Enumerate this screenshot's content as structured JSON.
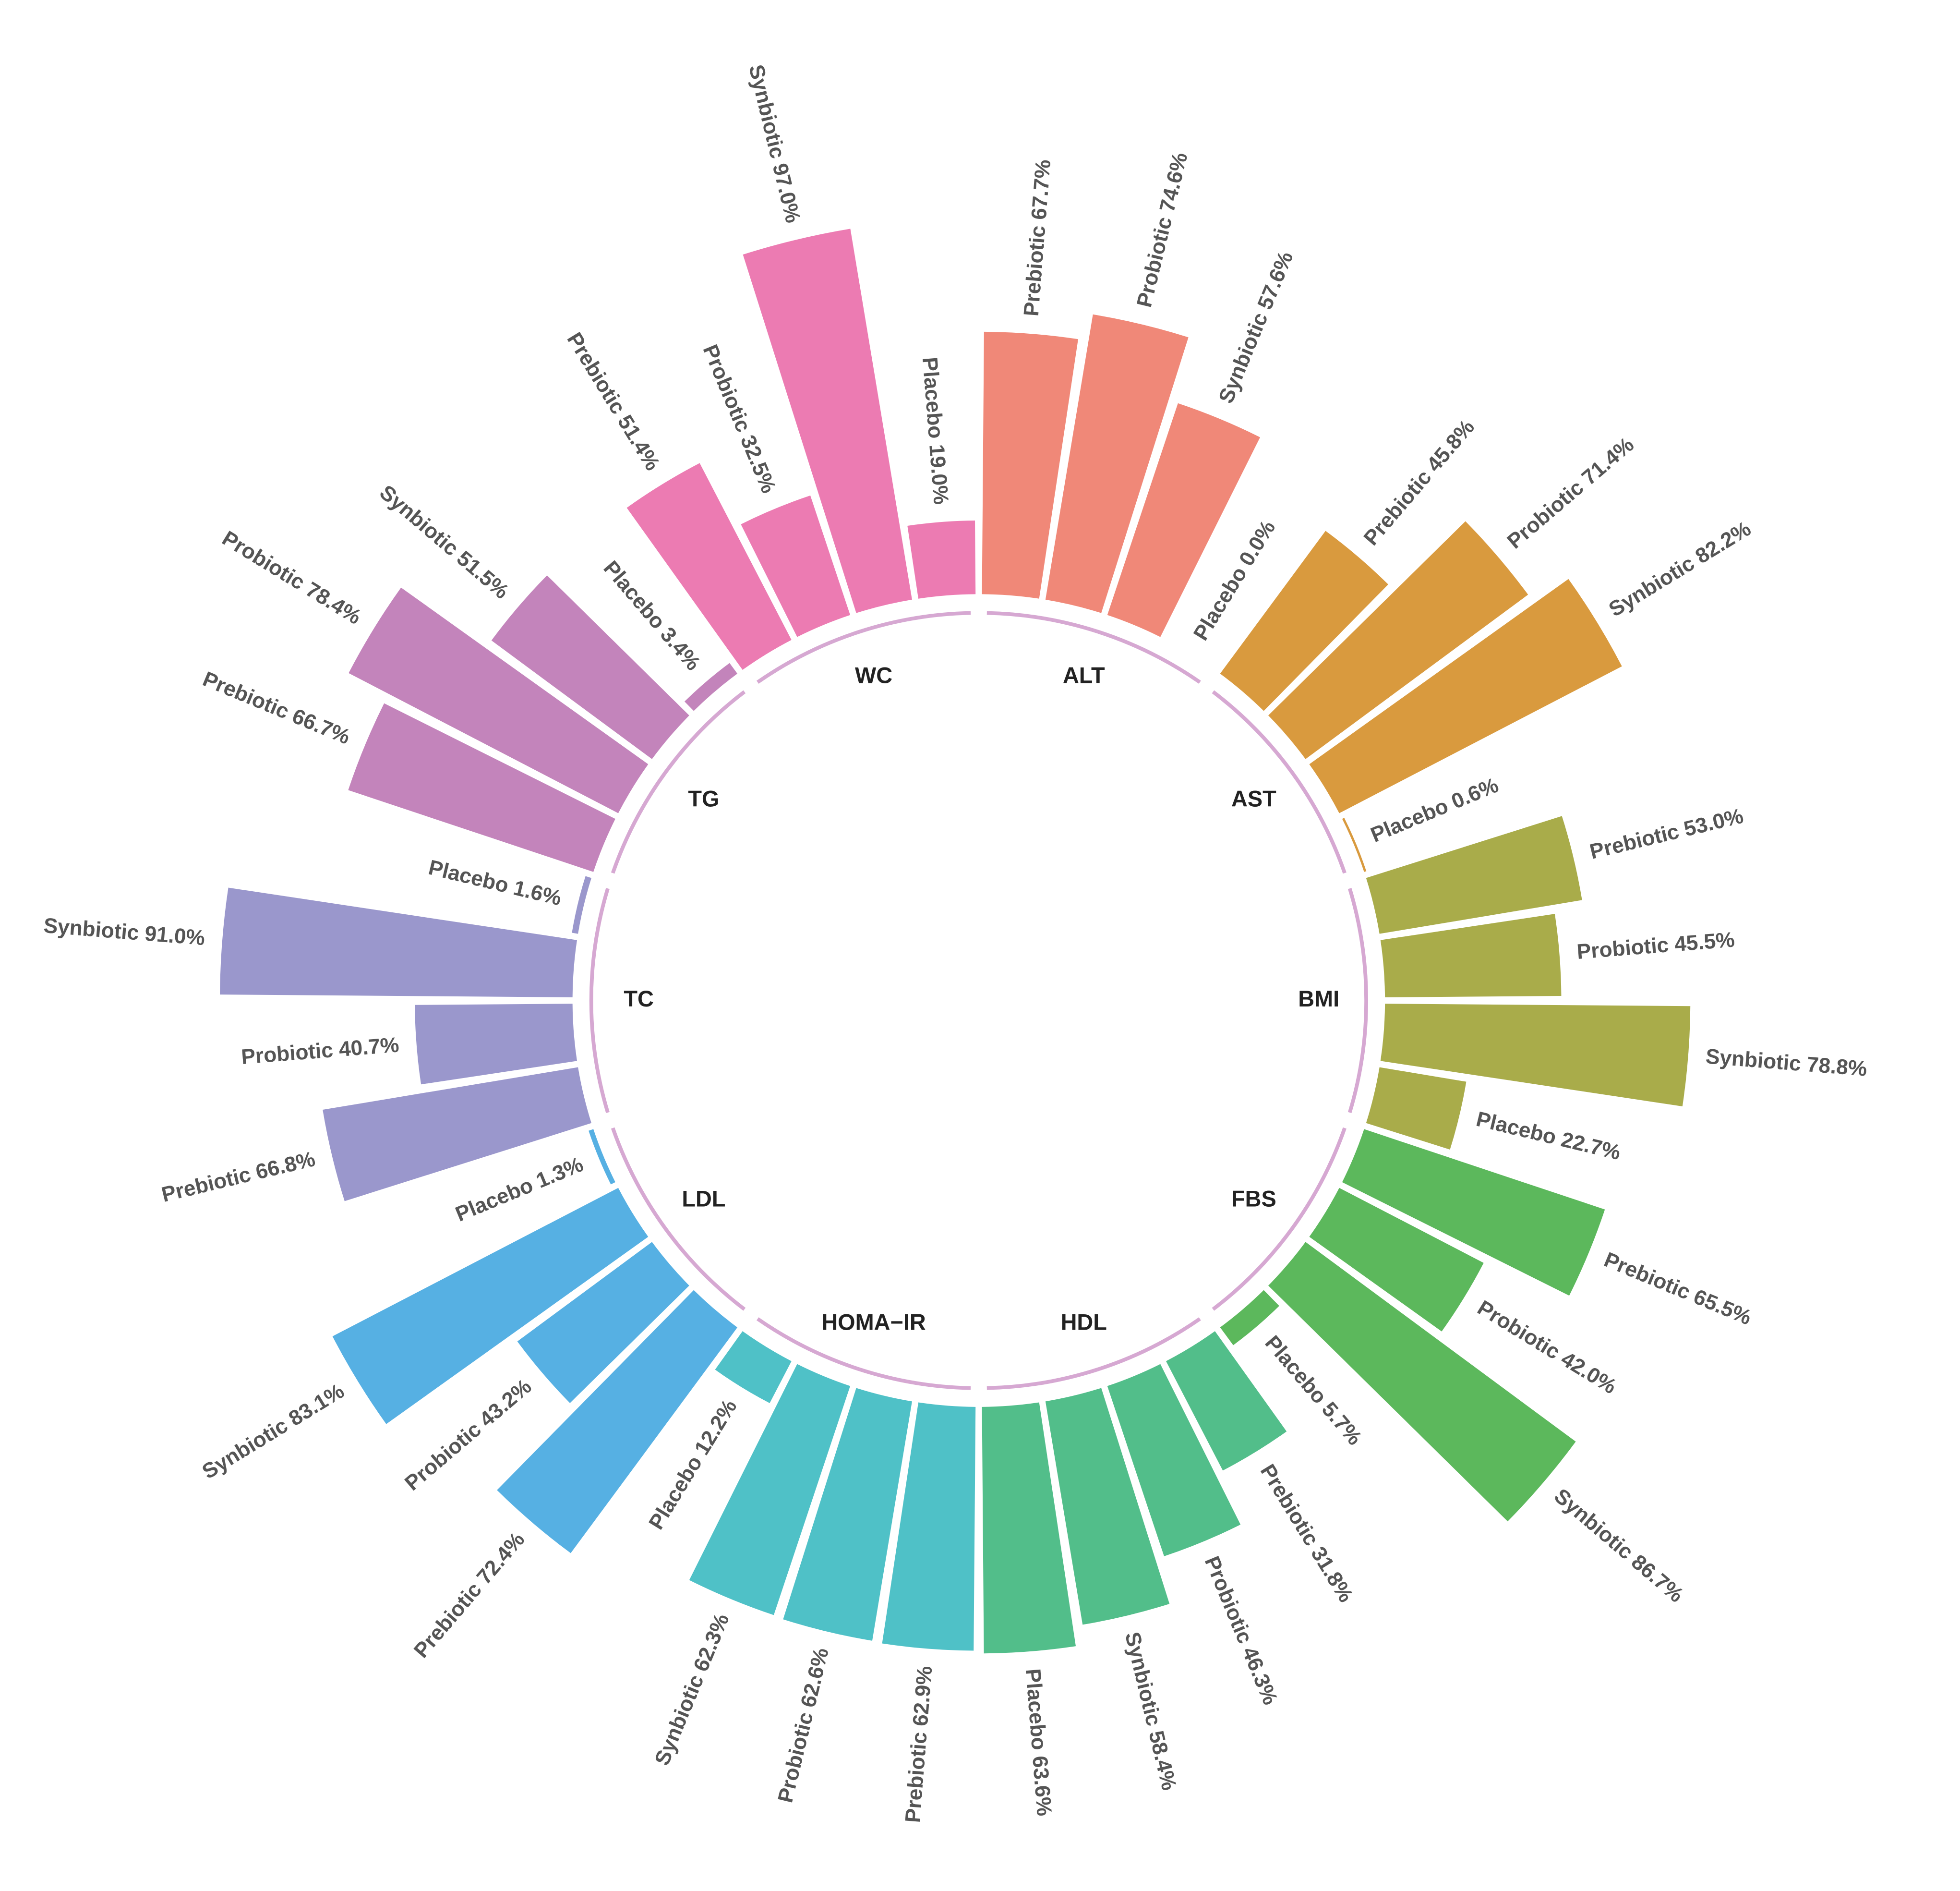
{
  "chart_data": {
    "type": "circular_bar",
    "categories": [
      "ALT",
      "AST",
      "BMI",
      "FBS",
      "HDL",
      "HOMA−IR",
      "LDL",
      "TC",
      "TG",
      "WC"
    ],
    "colors": [
      "#f08878",
      "#d99a3e",
      "#a9ac4a",
      "#5cb85c",
      "#52be8a",
      "#4fc1c7",
      "#56b0e3",
      "#9a97cc",
      "#c384bb",
      "#ec7bb2"
    ],
    "ylim": [
      0,
      100
    ],
    "series": [
      {
        "values": [
          67.7,
          45.8,
          53.0,
          65.5,
          31.8,
          62.9,
          72.4,
          66.8,
          66.7,
          51.4
        ],
        "value_labels": [
          "Prebiotic 67.7%",
          "Prebiotic 45.8%",
          "Prebiotic 53.0%",
          "Prebiotic 65.5%",
          "Prebiotic 31.8%",
          "Prebiotic 62.9%",
          "Prebiotic 72.4%",
          "Prebiotic 66.8%",
          "Prebiotic 66.7%",
          "Prebiotic 51.4%"
        ]
      },
      {
        "values": [
          74.6,
          71.4,
          45.5,
          42.0,
          46.3,
          62.6,
          43.2,
          40.7,
          78.4,
          32.5
        ],
        "value_labels": [
          "Probiotic 74.6%",
          "Probiotic 71.4%",
          "Probiotic 45.5%",
          "Probiotic 42.0%",
          "Probiotic 46.3%",
          "Probiotic 62.6%",
          "Probiotic 43.2%",
          "Probiotic 40.7%",
          "Probiotic 78.4%",
          "Probiotic 32.5%"
        ]
      },
      {
        "values": [
          57.6,
          82.2,
          78.8,
          86.7,
          58.4,
          62.3,
          83.1,
          91.0,
          51.5,
          97.0
        ],
        "value_labels": [
          "Synbiotic 57.6%",
          "Synbiotic 82.2%",
          "Synbiotic 78.8%",
          "Synbiotic 86.7%",
          "Synbiotic 58.4%",
          "Synbiotic 62.3%",
          "Synbiotic 83.1%",
          "Synbiotic 91.0%",
          "Synbiotic 51.5%",
          "Synbiotic 97.0%"
        ]
      },
      {
        "values": [
          0.0,
          0.6,
          22.7,
          5.7,
          63.6,
          12.2,
          1.3,
          1.6,
          3.4,
          19.0
        ],
        "value_labels": [
          "Placebo 0.0%",
          "Placebo 0.6%",
          "Placebo 22.7%",
          "Placebo 5.7%",
          "Placebo 63.6%",
          "Placebo 12.2%",
          "Placebo 1.3%",
          "Placebo 1.6%",
          "Placebo 3.4%",
          "Placebo 19.0%"
        ]
      }
    ]
  }
}
